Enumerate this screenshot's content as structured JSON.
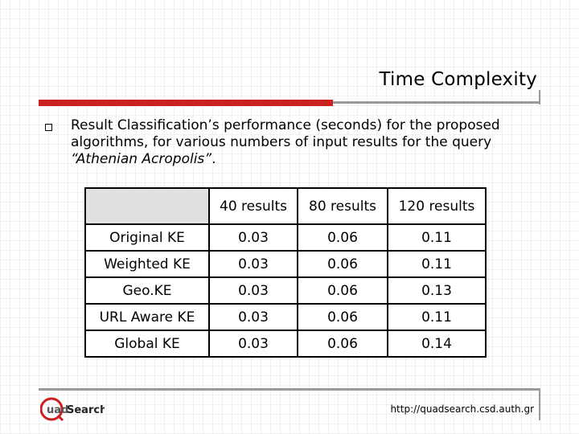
{
  "slide": {
    "title": "Time Complexity",
    "paragraph": {
      "text": "Result Classification’s performance (seconds) for the proposed algorithms, for various numbers of input results for the query ",
      "query": "“Athenian Acropolis”",
      "end": "."
    }
  },
  "table": {
    "columns": [
      "",
      "40 results",
      "80 results",
      "120 results"
    ],
    "rows": [
      {
        "label": "Original KE",
        "values": [
          "0.03",
          "0.06",
          "0.11"
        ]
      },
      {
        "label": "Weighted KE",
        "values": [
          "0.03",
          "0.06",
          "0.11"
        ]
      },
      {
        "label": "Geo.KE",
        "values": [
          "0.03",
          "0.06",
          "0.13"
        ]
      },
      {
        "label": "URL Aware KE",
        "values": [
          "0.03",
          "0.06",
          "0.11"
        ]
      },
      {
        "label": "Global KE",
        "values": [
          "0.03",
          "0.06",
          "0.14"
        ]
      }
    ]
  },
  "footer": {
    "logo": {
      "q": "q",
      "text": "uad",
      "search": "Search"
    },
    "url": "http://quadsearch.csd.auth.gr"
  },
  "colors": {
    "accent_red": "#cc1f1f",
    "rule_gray": "#9a9a9a",
    "header_fill": "#e0e0e0"
  }
}
